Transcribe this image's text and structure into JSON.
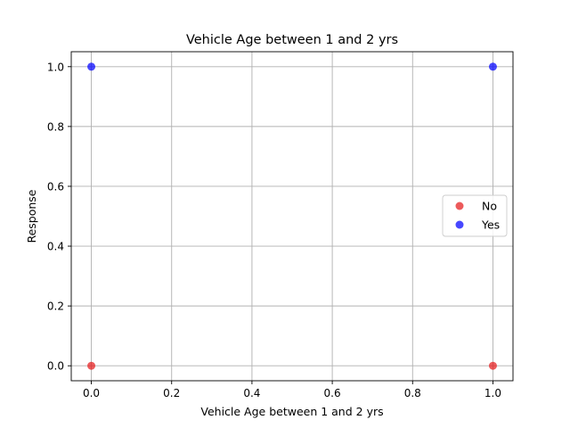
{
  "chart_data": {
    "type": "scatter",
    "title": "Vehicle Age between 1 and 2 yrs",
    "xlabel": "Vehicle Age between 1 and 2 yrs",
    "ylabel": "Response",
    "xlim": [
      -0.05,
      1.05
    ],
    "ylim": [
      -0.05,
      1.05
    ],
    "xticks": [
      "0.0",
      "0.2",
      "0.4",
      "0.6",
      "0.8",
      "1.0"
    ],
    "yticks": [
      "0.0",
      "0.2",
      "0.4",
      "0.6",
      "0.8",
      "1.0"
    ],
    "grid": true,
    "legend_position": "center-right",
    "series": [
      {
        "name": "No",
        "color": "#e41a1c",
        "points": [
          [
            0,
            0
          ],
          [
            1,
            0
          ]
        ]
      },
      {
        "name": "Yes",
        "color": "#0000ff",
        "points": [
          [
            0,
            1
          ],
          [
            1,
            1
          ]
        ]
      }
    ]
  }
}
